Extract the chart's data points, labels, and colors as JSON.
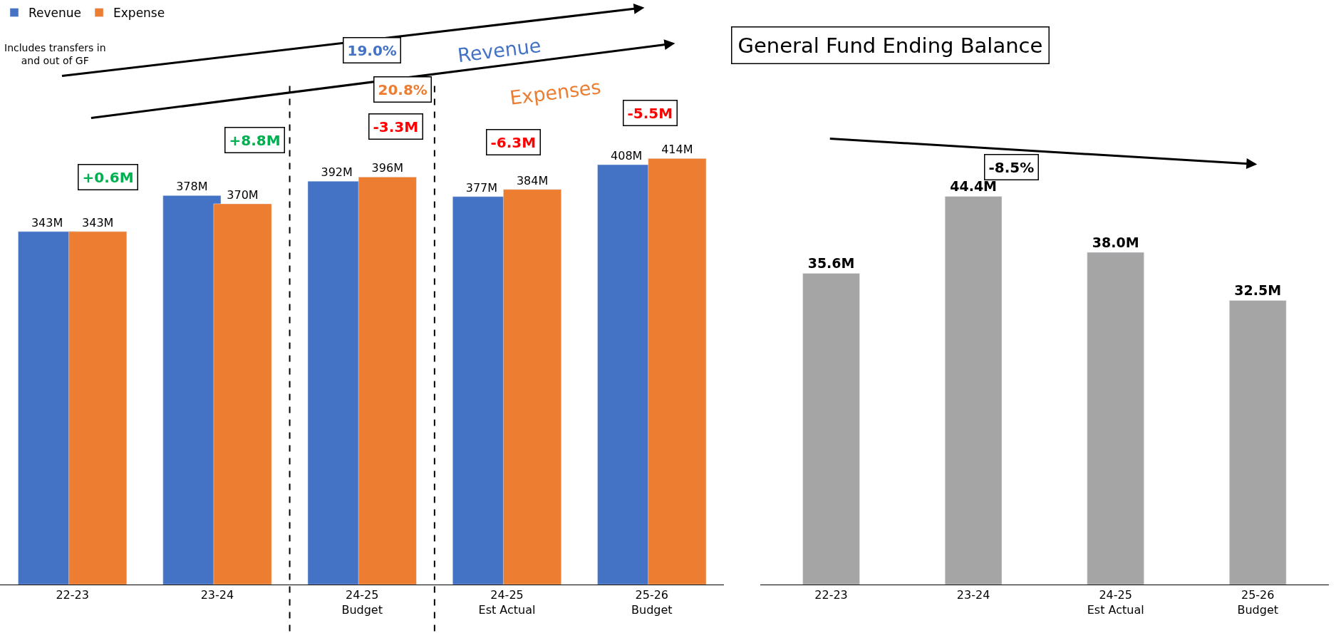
{
  "chart_data": [
    {
      "type": "bar",
      "categories": [
        "22-23",
        "23-24",
        "24-25\nBudget",
        "24-25\nEst Actual",
        "25-26\nBudget"
      ],
      "series": [
        {
          "name": "Revenue",
          "color": "#4472c4",
          "values": [
            343,
            378,
            392,
            377,
            408
          ],
          "value_labels": [
            "343M",
            "378M",
            "392M",
            "377M",
            "408M"
          ]
        },
        {
          "name": "Expense",
          "color": "#ed7d31",
          "values": [
            343,
            370,
            396,
            384,
            414
          ],
          "value_labels": [
            "343M",
            "370M",
            "396M",
            "384M",
            "414M"
          ]
        }
      ],
      "annotations": [
        "+0.6M",
        "+8.8M",
        "-3.3M",
        "-6.3M",
        "-5.5M",
        "19.0%",
        "Revenue",
        "20.8%",
        "Expenses",
        "Includes transfers in\nand out of GF"
      ],
      "legend": "top left",
      "tick_labels": "x"
    },
    {
      "type": "bar",
      "title": "General Fund Ending Balance",
      "categories": [
        "22-23",
        "23-24",
        "24-25\nEst Actual",
        "25-26\nBudget"
      ],
      "series": [
        {
          "color": "#a5a5a5",
          "values": [
            35.6,
            44.4,
            38.0,
            32.5
          ],
          "value_labels": [
            "35.6M",
            "44.4M",
            "38.0M",
            "32.5M"
          ]
        }
      ],
      "annotations": [
        "-8.5%"
      ],
      "tick_labels": "x"
    }
  ]
}
